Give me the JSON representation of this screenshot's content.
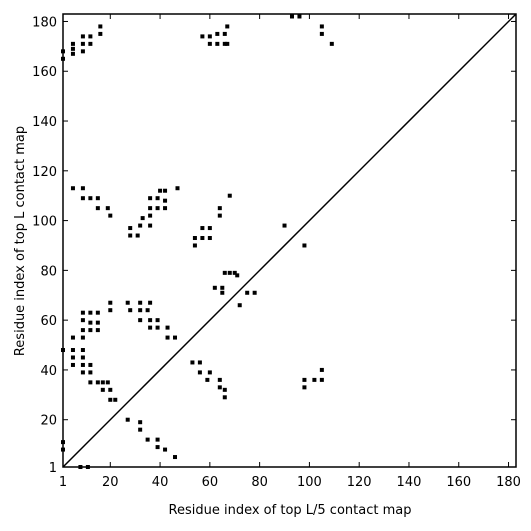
{
  "chart_data": {
    "type": "scatter",
    "xlabel": "Residue index of top L/5 contact map",
    "ylabel": "Residue index of top L contact map",
    "xlim": [
      1,
      183
    ],
    "ylim": [
      1,
      183
    ],
    "xticks": [
      1,
      20,
      40,
      60,
      80,
      100,
      120,
      140,
      160,
      180
    ],
    "yticks": [
      1,
      20,
      40,
      60,
      80,
      100,
      120,
      140,
      160,
      180
    ],
    "color": "#000000",
    "diagonal": true,
    "x": [
      1,
      1,
      5,
      5,
      5,
      9,
      9,
      9,
      12,
      12,
      16,
      16,
      5,
      9,
      9,
      12,
      15,
      15,
      19,
      20,
      28,
      28,
      31,
      32,
      33,
      36,
      36,
      36,
      36,
      39,
      39,
      42,
      42,
      42,
      47,
      40,
      1,
      5,
      5,
      5,
      5,
      9,
      9,
      9,
      9,
      9,
      9,
      9,
      9,
      12,
      12,
      12,
      15,
      15,
      15,
      20,
      20,
      12,
      12,
      12,
      15,
      17,
      17,
      20,
      20,
      22,
      19,
      27,
      28,
      32,
      32,
      32,
      35,
      36,
      36,
      36,
      39,
      39,
      43,
      43,
      46,
      27,
      32,
      32,
      35,
      39,
      39,
      42,
      46,
      1,
      1,
      8,
      11,
      57,
      60,
      63,
      66,
      67,
      60,
      63,
      66,
      67,
      93,
      96,
      105,
      105,
      109,
      54,
      54,
      57,
      57,
      60,
      60,
      64,
      64,
      68,
      62,
      65,
      65,
      66,
      68,
      70,
      71,
      75,
      78,
      72,
      90,
      98,
      53,
      56,
      56,
      59,
      60,
      64,
      64,
      66,
      66,
      98,
      98,
      102,
      105,
      105
    ],
    "values": [
      165,
      168,
      167,
      169,
      171,
      168,
      171,
      174,
      171,
      174,
      175,
      178,
      113,
      113,
      109,
      109,
      109,
      105,
      105,
      102,
      97,
      94,
      94,
      98,
      101,
      98,
      102,
      105,
      109,
      105,
      109,
      105,
      108,
      112,
      113,
      112,
      48,
      53,
      48,
      45,
      42,
      42,
      39,
      45,
      48,
      53,
      56,
      60,
      63,
      63,
      59,
      56,
      59,
      63,
      56,
      64,
      67,
      42,
      39,
      35,
      35,
      35,
      32,
      32,
      28,
      28,
      35,
      67,
      64,
      67,
      64,
      60,
      64,
      67,
      60,
      57,
      60,
      57,
      57,
      53,
      53,
      20,
      19,
      16,
      12,
      12,
      9,
      8,
      5,
      11,
      8,
      1,
      1,
      174,
      174,
      175,
      175,
      178,
      171,
      171,
      171,
      171,
      182,
      182,
      178,
      175,
      171,
      93,
      90,
      93,
      97,
      97,
      93,
      102,
      105,
      110,
      73,
      73,
      71,
      79,
      79,
      79,
      78,
      71,
      71,
      66,
      98,
      90,
      43,
      43,
      39,
      36,
      39,
      36,
      33,
      32,
      29,
      36,
      33,
      36,
      36,
      40
    ]
  }
}
